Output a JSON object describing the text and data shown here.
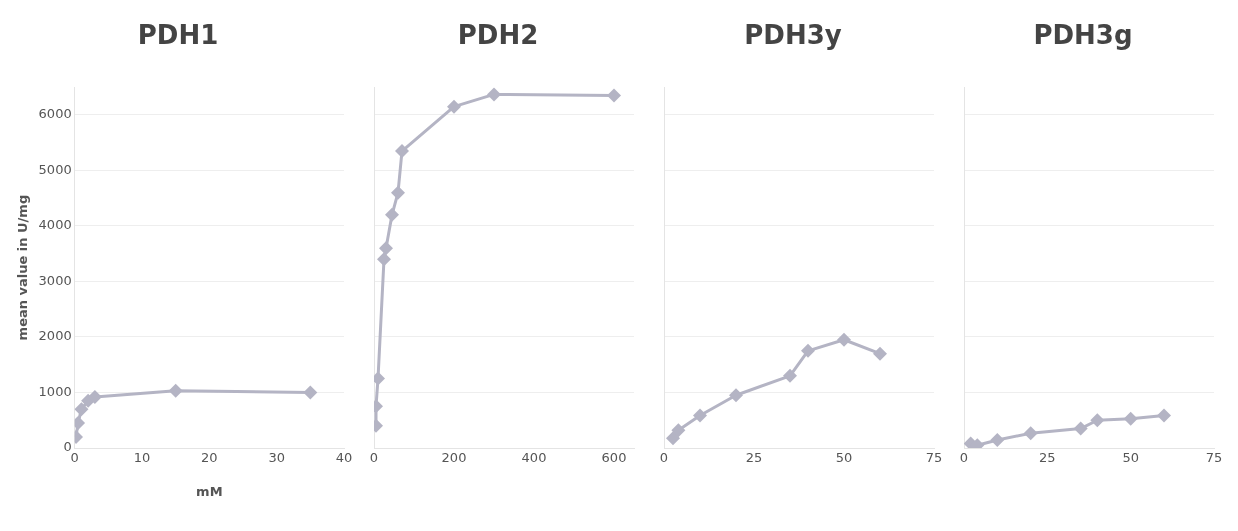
{
  "chart_data": [
    {
      "type": "line",
      "title": "PDH1",
      "xlabel": "mM",
      "ylabel": "mean value in U/mg",
      "xlim": [
        0,
        40
      ],
      "xticks": [
        0,
        10,
        20,
        30,
        40
      ],
      "ylim": [
        0,
        6500
      ],
      "yticks": [
        0,
        1000,
        2000,
        3000,
        4000,
        5000,
        6000
      ],
      "grid": "y",
      "marker": "diamond",
      "line_style": "solid",
      "series": [
        {
          "color": "#b4b4c4",
          "x": [
            0.2,
            0.5,
            1,
            2,
            3,
            15,
            35
          ],
          "values": [
            200,
            450,
            700,
            850,
            920,
            1030,
            1000
          ]
        }
      ]
    },
    {
      "type": "line",
      "title": "PDH2",
      "xlim": [
        0,
        650
      ],
      "xticks": [
        0,
        200,
        400,
        600
      ],
      "ylim": [
        0,
        6500
      ],
      "yticks": [
        0,
        1000,
        2000,
        3000,
        4000,
        5000,
        6000
      ],
      "grid": "y",
      "marker": "diamond",
      "line_style": "solid",
      "tick_labels": "x",
      "series": [
        {
          "color": "#b4b4c4",
          "x": [
            5,
            5,
            10,
            25,
            30,
            45,
            60,
            70,
            200,
            300,
            600
          ],
          "values": [
            400,
            750,
            1250,
            3400,
            3600,
            4200,
            4600,
            5350,
            6150,
            6370,
            6350
          ]
        }
      ]
    },
    {
      "type": "line",
      "title": "PDH3y",
      "xlim": [
        0,
        75
      ],
      "xticks": [
        0,
        25,
        50,
        75
      ],
      "ylim": [
        0,
        6500
      ],
      "yticks": [
        0,
        1000,
        2000,
        3000,
        4000,
        5000,
        6000
      ],
      "grid": "y",
      "marker": "diamond",
      "line_style": "solid",
      "tick_labels": "x",
      "series": [
        {
          "color": "#b4b4c4",
          "x": [
            2.5,
            4,
            10,
            20,
            35,
            40,
            50,
            60
          ],
          "values": [
            175,
            320,
            585,
            950,
            1300,
            1750,
            1950,
            1700
          ]
        }
      ]
    },
    {
      "type": "line",
      "title": "PDH3g",
      "xlim": [
        0,
        75
      ],
      "xticks": [
        0,
        25,
        50,
        75
      ],
      "ylim": [
        0,
        6500
      ],
      "yticks": [
        0,
        1000,
        2000,
        3000,
        4000,
        5000,
        6000
      ],
      "grid": "y",
      "marker": "diamond",
      "line_style": "solid",
      "tick_labels": "x",
      "series": [
        {
          "color": "#b4b4c4",
          "x": [
            2,
            4,
            10,
            20,
            35,
            40,
            50,
            60
          ],
          "values": [
            80,
            50,
            145,
            265,
            350,
            500,
            525,
            585
          ]
        }
      ]
    }
  ]
}
